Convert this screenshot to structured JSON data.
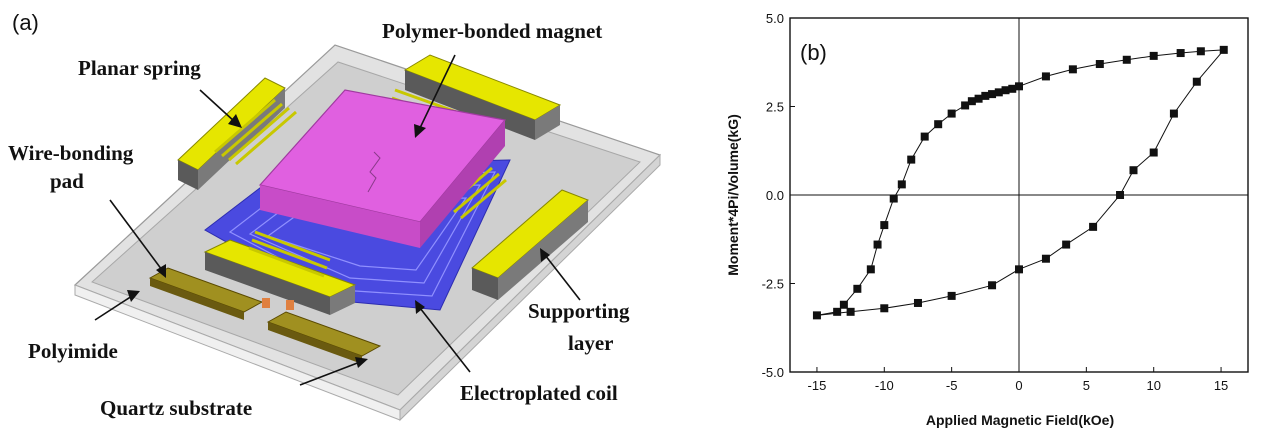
{
  "figure_a": {
    "panel_label": "(a)",
    "labels": {
      "polymer_magnet": "Polymer-bonded magnet",
      "planar_spring": "Planar spring",
      "wire_bonding_line1": "Wire-bonding",
      "wire_bonding_line2": "pad",
      "polyimide": "Polyimide",
      "quartz": "Quartz substrate",
      "supporting_line1": "Supporting",
      "supporting_line2": "layer",
      "coil": "Electroplated coil"
    },
    "colors": {
      "magnet": "#e060e0",
      "spring_yellow": "#e6e600",
      "coil_blue": "#4a4ae0",
      "pad_brown": "#8a7a10",
      "substrate_gray": "#d8d8d8",
      "support_dark": "#5a5a5a"
    }
  },
  "chart_data": {
    "type": "scatter",
    "panel_label": "(b)",
    "xlabel": "Applied Magnetic Field(kOe)",
    "ylabel": "Moment*4Pi/Volume(kG)",
    "xlim": [
      -17,
      17
    ],
    "ylim": [
      -5.0,
      5.0
    ],
    "xticks": [
      -15,
      -10,
      -5,
      0,
      5,
      10,
      15
    ],
    "yticks": [
      5.0,
      2.5,
      0.0,
      -2.5,
      -5.0
    ],
    "ytick_labels": [
      "5.0",
      "2.5",
      "0.0",
      "-2.5",
      "-5.0"
    ],
    "zero_lines": true,
    "marker": "square",
    "series": [
      {
        "values_upper_branch": [
          [
            15.2,
            4.1
          ],
          [
            13.5,
            4.06
          ],
          [
            12.0,
            4.01
          ],
          [
            10.0,
            3.93
          ],
          [
            8.0,
            3.82
          ],
          [
            6.0,
            3.7
          ],
          [
            4.0,
            3.55
          ],
          [
            2.0,
            3.35
          ],
          [
            0.0,
            3.07
          ],
          [
            -0.5,
            3.0
          ],
          [
            -1.0,
            2.96
          ],
          [
            -1.5,
            2.9
          ],
          [
            -2.0,
            2.85
          ],
          [
            -2.5,
            2.8
          ],
          [
            -3.0,
            2.72
          ],
          [
            -3.5,
            2.65
          ],
          [
            -4.0,
            2.53
          ],
          [
            -5.0,
            2.3
          ],
          [
            -6.0,
            2.0
          ],
          [
            -7.0,
            1.65
          ],
          [
            -8.0,
            1.0
          ],
          [
            -8.7,
            0.3
          ],
          [
            -9.3,
            -0.1
          ],
          [
            -10.0,
            -0.85
          ],
          [
            -10.5,
            -1.4
          ],
          [
            -11.0,
            -2.1
          ],
          [
            -12.0,
            -2.65
          ],
          [
            -13.0,
            -3.1
          ],
          [
            -13.5,
            -3.3
          ],
          [
            -15.0,
            -3.4
          ]
        ],
        "values_lower_branch": [
          [
            -15.0,
            -3.4
          ],
          [
            -12.5,
            -3.3
          ],
          [
            -10.0,
            -3.2
          ],
          [
            -7.5,
            -3.05
          ],
          [
            -5.0,
            -2.85
          ],
          [
            -2.0,
            -2.55
          ],
          [
            0.0,
            -2.1
          ],
          [
            2.0,
            -1.8
          ],
          [
            3.5,
            -1.4
          ],
          [
            5.5,
            -0.9
          ],
          [
            7.5,
            0.0
          ],
          [
            8.5,
            0.7
          ],
          [
            10.0,
            1.2
          ],
          [
            11.5,
            2.3
          ],
          [
            13.2,
            3.2
          ],
          [
            15.2,
            4.1
          ]
        ]
      }
    ]
  }
}
